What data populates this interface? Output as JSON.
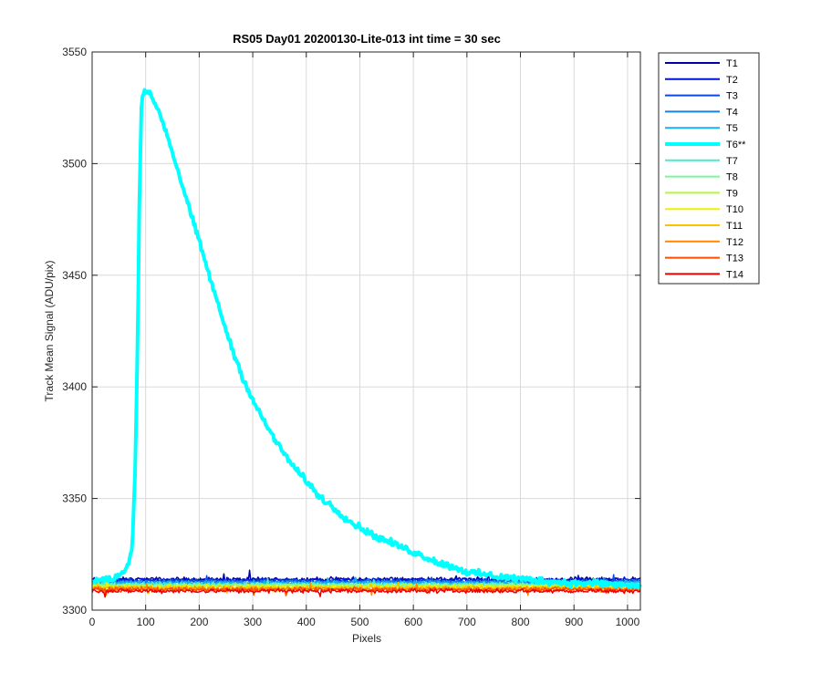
{
  "chart_data": {
    "type": "line",
    "title": "RS05 Day01 20200130-Lite-013 int time = 30 sec",
    "xlabel": "Pixels",
    "ylabel": "Track Mean Signal (ADU/pix)",
    "xlim": [
      0,
      1024
    ],
    "ylim": [
      3300,
      3550
    ],
    "xticks": [
      0,
      100,
      200,
      300,
      400,
      500,
      600,
      700,
      800,
      900,
      1000
    ],
    "yticks": [
      3300,
      3350,
      3400,
      3450,
      3500,
      3550
    ],
    "xtick_labels": [
      "0",
      "100",
      "200",
      "300",
      "400",
      "500",
      "600",
      "700",
      "800",
      "900",
      "1000"
    ],
    "ytick_labels": [
      "3300",
      "3350",
      "3400",
      "3450",
      "3500",
      "3550"
    ],
    "grid": true,
    "legend_position": "outside-top-right",
    "series": [
      {
        "name": "T1",
        "color": "#0000a8",
        "baseline": 3313.8,
        "noise": 1.4,
        "width": 1.5
      },
      {
        "name": "T2",
        "color": "#0014d4",
        "baseline": 3313.4,
        "noise": 1.4,
        "width": 1.5
      },
      {
        "name": "T3",
        "color": "#0a48e8",
        "baseline": 3313.0,
        "noise": 1.4,
        "width": 1.5
      },
      {
        "name": "T4",
        "color": "#1a80e6",
        "baseline": 3312.6,
        "noise": 1.4,
        "width": 1.5
      },
      {
        "name": "T5",
        "color": "#14b4f0",
        "baseline": 3312.2,
        "noise": 1.4,
        "width": 1.5
      },
      {
        "name": "T6**",
        "color": "#00ffff",
        "baseline": 3313.0,
        "noise": 1.8,
        "width": 4,
        "x": [
          0,
          40,
          60,
          70,
          75,
          80,
          85,
          88,
          92,
          95,
          100,
          110,
          120,
          130,
          140,
          150,
          160,
          175,
          190,
          200,
          210,
          225,
          240,
          260,
          280,
          300,
          320,
          350,
          380,
          400,
          420,
          450,
          480,
          500,
          530,
          560,
          600,
          630,
          650,
          680,
          700,
          730,
          760,
          800,
          850,
          900,
          950,
          1000,
          1024
        ],
        "values": [
          3313,
          3314,
          3317,
          3322,
          3330,
          3360,
          3420,
          3480,
          3525,
          3532,
          3533,
          3530,
          3526,
          3520,
          3513,
          3505,
          3497,
          3485,
          3473,
          3465,
          3457,
          3445,
          3433,
          3418,
          3405,
          3394,
          3385,
          3373,
          3363,
          3358,
          3352,
          3346,
          3340,
          3337,
          3333,
          3330,
          3326,
          3323,
          3321,
          3319,
          3317,
          3316,
          3315,
          3314,
          3313,
          3312,
          3312,
          3311,
          3311
        ]
      },
      {
        "name": "T7",
        "color": "#48eccc",
        "baseline": 3311.6,
        "noise": 1.4,
        "width": 1.5
      },
      {
        "name": "T8",
        "color": "#7cf89c",
        "baseline": 3311.2,
        "noise": 1.4,
        "width": 1.5
      },
      {
        "name": "T9",
        "color": "#b4f83c",
        "baseline": 3310.8,
        "noise": 1.4,
        "width": 1.5
      },
      {
        "name": "T10",
        "color": "#f0f000",
        "baseline": 3310.4,
        "noise": 1.4,
        "width": 1.5
      },
      {
        "name": "T11",
        "color": "#f8c400",
        "baseline": 3310.0,
        "noise": 1.4,
        "width": 1.5
      },
      {
        "name": "T12",
        "color": "#ff8800",
        "baseline": 3309.6,
        "noise": 1.4,
        "width": 1.5
      },
      {
        "name": "T13",
        "color": "#ff4c00",
        "baseline": 3309.2,
        "noise": 1.4,
        "width": 1.5
      },
      {
        "name": "T14",
        "color": "#ee0000",
        "baseline": 3308.6,
        "noise": 1.4,
        "width": 1.5
      }
    ]
  }
}
